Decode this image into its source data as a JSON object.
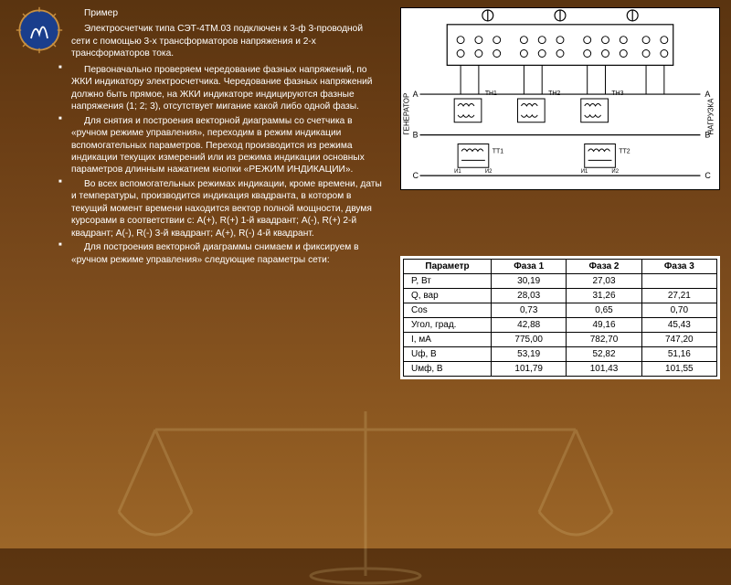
{
  "intro_title": "Пример",
  "intro_body": "Электросчетчик типа СЭТ-4ТМ.03 подключен к 3-ф 3-проводной сети с помощью 3-х трансформаторов напряжения и 2-х трансформаторов тока.",
  "bullets": [
    "Первоначально проверяем чередование фазных напряжений, по ЖКИ индикатору электросчетчика. Чередование фазных напряжений должно быть прямое, на ЖКИ индикаторе индицируются фазные напряжения (1; 2; 3), отсутствует мигание какой либо одной фазы.",
    "Для снятия и построения векторной диаграммы со счетчика в «ручном режиме управления», переходим в режим индикации вспомогательных параметров. Переход производится из режима индикации текущих измерений или из режима индикации основных параметров длинным нажатием кнопки «РЕЖИМ ИНДИКАЦИИ».",
    "Во всех вспомогательных режимах индикации, кроме времени, даты и температуры, производится индикация квадранта, в котором в текущий момент времени находится вектор полной мощности, двумя курсорами в соответствии с: A(+), R(+)  1-й квадрант; A(-), R(+)  2-й квадрант; A(-), R(-)  3-й квадрант; A(+), R(-)  4-й квадрант.",
    "Для построения векторной диаграммы снимаем и фиксируем в «ручном режиме управления» следующие параметры сети:"
  ],
  "diagram": {
    "left_label": "ГЕНЕРАТОР",
    "right_label": "НАГРУЗКА",
    "phases": [
      "A",
      "B",
      "C"
    ],
    "tn_labels": [
      "ТН1",
      "ТН2",
      "ТН3"
    ],
    "tt_labels": [
      "ТТ1",
      "ТТ2"
    ],
    "terminals": [
      "И1",
      "И2"
    ],
    "terminal_count": 11,
    "colors": {
      "line": "#000",
      "bg": "#fff"
    }
  },
  "table": {
    "headers": [
      "Параметр",
      "Фаза 1",
      "Фаза 2",
      "Фаза 3"
    ],
    "rows": [
      [
        "P, Вт",
        "30,19",
        "27,03",
        ""
      ],
      [
        "Q, вар",
        "28,03",
        "31,26",
        "27,21"
      ],
      [
        "Cos",
        "0,73",
        "0,65",
        "0,70"
      ],
      [
        "Угол, град.",
        "42,88",
        "49,16",
        "45,43"
      ],
      [
        "I, мА",
        "775,00",
        "782,70",
        "747,20"
      ],
      [
        "Uф, В",
        "53,19",
        "52,82",
        "51,16"
      ],
      [
        "Uмф, В",
        "101,79",
        "101,43",
        "101,55"
      ]
    ],
    "col_widths": [
      "28%",
      "24%",
      "24%",
      "24%"
    ],
    "font_size": 10,
    "border_color": "#000",
    "bg_color": "#fff"
  },
  "colors": {
    "bg_top": "#5a3410",
    "bg_bottom": "#9c6628",
    "text": "#ffffff",
    "logo_blue": "#1a3e8c",
    "logo_accent": "#c89040"
  }
}
